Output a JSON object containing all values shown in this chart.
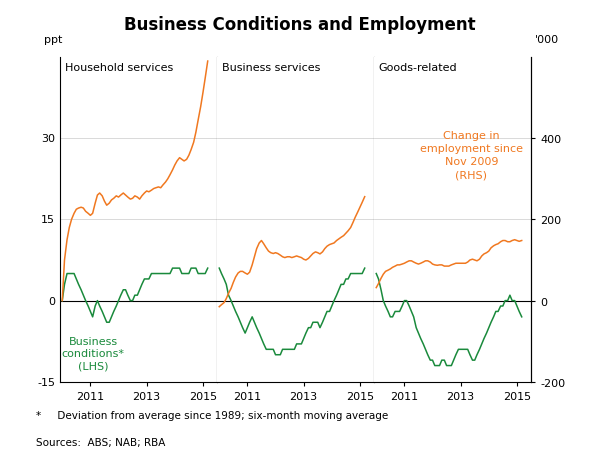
{
  "title": "Business Conditions and Employment",
  "panel_labels": [
    "Household services",
    "Business services",
    "Goods-related"
  ],
  "ylabel_left": "ppt",
  "ylabel_right": "'000",
  "lhs_ylim": [
    -15,
    45
  ],
  "rhs_ylim": [
    -200,
    600
  ],
  "lhs_yticks": [
    -15,
    0,
    15,
    30
  ],
  "rhs_yticks": [
    -200,
    0,
    200,
    400
  ],
  "green_color": "#1a8a3c",
  "orange_color": "#f07820",
  "footnote1": "*     Deviation from average since 1989; six-month moving average",
  "footnote2": "Sources:  ABS; NAB; RBA",
  "annotation_text": "Change in\nemployment since\nNov 2009\n(RHS)",
  "legend_text": "Business\nconditions*\n(LHS)",
  "panel1": {
    "green_x": [
      2010.0,
      2010.08,
      2010.17,
      2010.25,
      2010.33,
      2010.42,
      2010.5,
      2010.58,
      2010.67,
      2010.75,
      2010.83,
      2010.92,
      2011.0,
      2011.08,
      2011.17,
      2011.25,
      2011.33,
      2011.42,
      2011.5,
      2011.58,
      2011.67,
      2011.75,
      2011.83,
      2011.92,
      2012.0,
      2012.08,
      2012.17,
      2012.25,
      2012.33,
      2012.42,
      2012.5,
      2012.58,
      2012.67,
      2012.75,
      2012.83,
      2012.92,
      2013.0,
      2013.08,
      2013.17,
      2013.25,
      2013.33,
      2013.42,
      2013.5,
      2013.58,
      2013.67,
      2013.75,
      2013.83,
      2013.92,
      2014.0,
      2014.08,
      2014.17,
      2014.25,
      2014.33,
      2014.42,
      2014.5,
      2014.58,
      2014.67,
      2014.75,
      2014.83,
      2014.92,
      2015.0,
      2015.08,
      2015.17
    ],
    "green_y": [
      0,
      3,
      5,
      5,
      5,
      5,
      4,
      3,
      2,
      1,
      0,
      -1,
      -2,
      -3,
      -1,
      0,
      -1,
      -2,
      -3,
      -4,
      -4,
      -3,
      -2,
      -1,
      0,
      1,
      2,
      2,
      1,
      0,
      0,
      1,
      1,
      2,
      3,
      4,
      4,
      4,
      5,
      5,
      5,
      5,
      5,
      5,
      5,
      5,
      5,
      6,
      6,
      6,
      6,
      5,
      5,
      5,
      5,
      6,
      6,
      6,
      5,
      5,
      5,
      5,
      6
    ],
    "orange_x": [
      2010.0,
      2010.08,
      2010.17,
      2010.25,
      2010.33,
      2010.42,
      2010.5,
      2010.58,
      2010.67,
      2010.75,
      2010.83,
      2010.92,
      2011.0,
      2011.08,
      2011.17,
      2011.25,
      2011.33,
      2011.42,
      2011.5,
      2011.58,
      2011.67,
      2011.75,
      2011.83,
      2011.92,
      2012.0,
      2012.08,
      2012.17,
      2012.25,
      2012.33,
      2012.42,
      2012.5,
      2012.58,
      2012.67,
      2012.75,
      2012.83,
      2012.92,
      2013.0,
      2013.08,
      2013.17,
      2013.25,
      2013.33,
      2013.42,
      2013.5,
      2013.58,
      2013.67,
      2013.75,
      2013.83,
      2013.92,
      2014.0,
      2014.08,
      2014.17,
      2014.25,
      2014.33,
      2014.42,
      2014.5,
      2014.58,
      2014.67,
      2014.75,
      2014.83,
      2014.92,
      2015.0,
      2015.08,
      2015.17
    ],
    "orange_y": [
      0,
      100,
      150,
      180,
      200,
      215,
      225,
      228,
      230,
      228,
      220,
      215,
      210,
      215,
      240,
      260,
      265,
      258,
      245,
      235,
      240,
      248,
      252,
      258,
      255,
      260,
      265,
      260,
      255,
      250,
      252,
      258,
      255,
      250,
      258,
      265,
      270,
      268,
      272,
      276,
      278,
      280,
      278,
      285,
      292,
      300,
      310,
      322,
      334,
      344,
      352,
      348,
      344,
      348,
      358,
      372,
      390,
      415,
      445,
      478,
      512,
      548,
      590
    ]
  },
  "panel2": {
    "green_x": [
      2010.0,
      2010.08,
      2010.17,
      2010.25,
      2010.33,
      2010.42,
      2010.5,
      2010.58,
      2010.67,
      2010.75,
      2010.83,
      2010.92,
      2011.0,
      2011.08,
      2011.17,
      2011.25,
      2011.33,
      2011.42,
      2011.5,
      2011.58,
      2011.67,
      2011.75,
      2011.83,
      2011.92,
      2012.0,
      2012.08,
      2012.17,
      2012.25,
      2012.33,
      2012.42,
      2012.5,
      2012.58,
      2012.67,
      2012.75,
      2012.83,
      2012.92,
      2013.0,
      2013.08,
      2013.17,
      2013.25,
      2013.33,
      2013.42,
      2013.5,
      2013.58,
      2013.67,
      2013.75,
      2013.83,
      2013.92,
      2014.0,
      2014.08,
      2014.17,
      2014.25,
      2014.33,
      2014.42,
      2014.5,
      2014.58,
      2014.67,
      2014.75,
      2014.83,
      2014.92,
      2015.0,
      2015.08,
      2015.17
    ],
    "green_y": [
      6,
      5,
      4,
      3,
      1,
      0,
      -1,
      -2,
      -3,
      -4,
      -5,
      -6,
      -5,
      -4,
      -3,
      -4,
      -5,
      -6,
      -7,
      -8,
      -9,
      -9,
      -9,
      -9,
      -10,
      -10,
      -10,
      -9,
      -9,
      -9,
      -9,
      -9,
      -9,
      -8,
      -8,
      -8,
      -7,
      -6,
      -5,
      -5,
      -4,
      -4,
      -4,
      -5,
      -4,
      -3,
      -2,
      -2,
      -1,
      0,
      1,
      2,
      3,
      3,
      4,
      4,
      5,
      5,
      5,
      5,
      5,
      5,
      6
    ],
    "orange_x": [
      2010.0,
      2010.08,
      2010.17,
      2010.25,
      2010.33,
      2010.42,
      2010.5,
      2010.58,
      2010.67,
      2010.75,
      2010.83,
      2010.92,
      2011.0,
      2011.08,
      2011.17,
      2011.25,
      2011.33,
      2011.42,
      2011.5,
      2011.58,
      2011.67,
      2011.75,
      2011.83,
      2011.92,
      2012.0,
      2012.08,
      2012.17,
      2012.25,
      2012.33,
      2012.42,
      2012.5,
      2012.58,
      2012.67,
      2012.75,
      2012.83,
      2012.92,
      2013.0,
      2013.08,
      2013.17,
      2013.25,
      2013.33,
      2013.42,
      2013.5,
      2013.58,
      2013.67,
      2013.75,
      2013.83,
      2013.92,
      2014.0,
      2014.08,
      2014.17,
      2014.25,
      2014.33,
      2014.42,
      2014.5,
      2014.58,
      2014.67,
      2014.75,
      2014.83,
      2014.92,
      2015.0,
      2015.08,
      2015.17
    ],
    "orange_y": [
      -15,
      -10,
      -5,
      5,
      18,
      30,
      45,
      58,
      68,
      72,
      72,
      68,
      65,
      70,
      88,
      108,
      128,
      142,
      148,
      140,
      130,
      122,
      118,
      116,
      118,
      116,
      112,
      108,
      106,
      108,
      108,
      106,
      108,
      110,
      108,
      106,
      102,
      100,
      104,
      110,
      116,
      120,
      118,
      115,
      120,
      128,
      134,
      138,
      140,
      142,
      148,
      152,
      156,
      160,
      166,
      172,
      180,
      192,
      205,
      218,
      230,
      242,
      256
    ]
  },
  "panel3": {
    "green_x": [
      2010.0,
      2010.08,
      2010.17,
      2010.25,
      2010.33,
      2010.42,
      2010.5,
      2010.58,
      2010.67,
      2010.75,
      2010.83,
      2010.92,
      2011.0,
      2011.08,
      2011.17,
      2011.25,
      2011.33,
      2011.42,
      2011.5,
      2011.58,
      2011.67,
      2011.75,
      2011.83,
      2011.92,
      2012.0,
      2012.08,
      2012.17,
      2012.25,
      2012.33,
      2012.42,
      2012.5,
      2012.58,
      2012.67,
      2012.75,
      2012.83,
      2012.92,
      2013.0,
      2013.08,
      2013.17,
      2013.25,
      2013.33,
      2013.42,
      2013.5,
      2013.58,
      2013.67,
      2013.75,
      2013.83,
      2013.92,
      2014.0,
      2014.08,
      2014.17,
      2014.25,
      2014.33,
      2014.42,
      2014.5,
      2014.58,
      2014.67,
      2014.75,
      2014.83,
      2014.92,
      2015.0,
      2015.08,
      2015.17
    ],
    "green_y": [
      5,
      4,
      2,
      0,
      -1,
      -2,
      -3,
      -3,
      -2,
      -2,
      -2,
      -1,
      0,
      0,
      -1,
      -2,
      -3,
      -5,
      -6,
      -7,
      -8,
      -9,
      -10,
      -11,
      -11,
      -12,
      -12,
      -12,
      -11,
      -11,
      -12,
      -12,
      -12,
      -11,
      -10,
      -9,
      -9,
      -9,
      -9,
      -9,
      -10,
      -11,
      -11,
      -10,
      -9,
      -8,
      -7,
      -6,
      -5,
      -4,
      -3,
      -2,
      -2,
      -1,
      -1,
      0,
      0,
      1,
      0,
      0,
      -1,
      -2,
      -3
    ],
    "orange_x": [
      2010.0,
      2010.08,
      2010.17,
      2010.25,
      2010.33,
      2010.42,
      2010.5,
      2010.58,
      2010.67,
      2010.75,
      2010.83,
      2010.92,
      2011.0,
      2011.08,
      2011.17,
      2011.25,
      2011.33,
      2011.42,
      2011.5,
      2011.58,
      2011.67,
      2011.75,
      2011.83,
      2011.92,
      2012.0,
      2012.08,
      2012.17,
      2012.25,
      2012.33,
      2012.42,
      2012.5,
      2012.58,
      2012.67,
      2012.75,
      2012.83,
      2012.92,
      2013.0,
      2013.08,
      2013.17,
      2013.25,
      2013.33,
      2013.42,
      2013.5,
      2013.58,
      2013.67,
      2013.75,
      2013.83,
      2013.92,
      2014.0,
      2014.08,
      2014.17,
      2014.25,
      2014.33,
      2014.42,
      2014.5,
      2014.58,
      2014.67,
      2014.75,
      2014.83,
      2014.92,
      2015.0,
      2015.08,
      2015.17
    ],
    "orange_y": [
      32,
      42,
      55,
      65,
      72,
      75,
      78,
      82,
      85,
      88,
      88,
      90,
      92,
      95,
      98,
      98,
      95,
      92,
      90,
      92,
      95,
      98,
      98,
      95,
      90,
      88,
      87,
      88,
      88,
      85,
      85,
      85,
      88,
      90,
      92,
      92,
      92,
      92,
      92,
      95,
      100,
      102,
      100,
      98,
      102,
      110,
      115,
      118,
      122,
      130,
      135,
      138,
      140,
      145,
      148,
      148,
      145,
      145,
      148,
      150,
      148,
      146,
      148
    ]
  },
  "xlim": [
    2009.92,
    2015.5
  ],
  "xtick_positions": [
    2011,
    2013,
    2015
  ]
}
